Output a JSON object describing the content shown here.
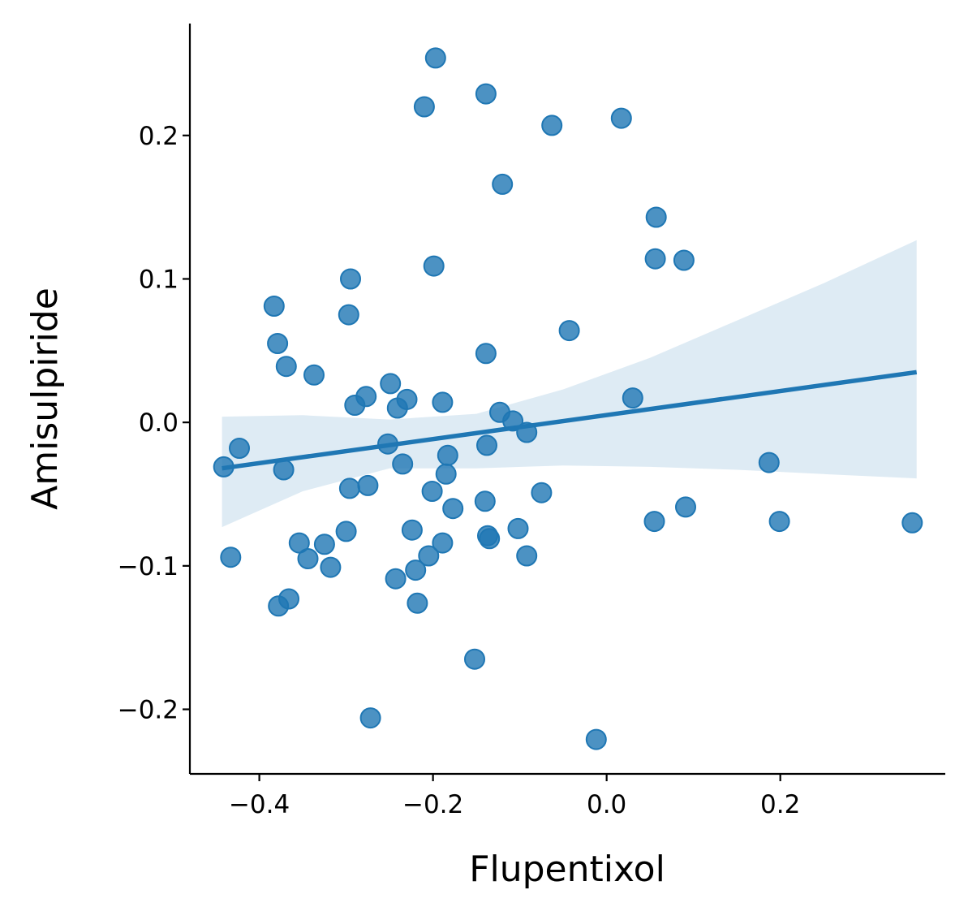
{
  "chart_data": {
    "type": "scatter",
    "xlabel": "Flupentixol",
    "ylabel": "Amisulpiride",
    "xlim": [
      -0.48,
      0.39
    ],
    "ylim": [
      -0.245,
      0.278
    ],
    "xticks": [
      -0.4,
      -0.2,
      0.0,
      0.2
    ],
    "xtick_labels": [
      "−0.4",
      "−0.2",
      "0.0",
      "0.2"
    ],
    "yticks": [
      -0.2,
      -0.1,
      0.0,
      0.1,
      0.2
    ],
    "ytick_labels": [
      "−0.2",
      "−0.1",
      "0.0",
      "0.1",
      "0.2"
    ],
    "grid": false,
    "point_color": "#1f77b4",
    "band_color": "#1f77b4",
    "points": [
      [
        -0.197,
        0.254
      ],
      [
        -0.139,
        0.229
      ],
      [
        -0.21,
        0.22
      ],
      [
        -0.063,
        0.207
      ],
      [
        0.017,
        0.212
      ],
      [
        -0.12,
        0.166
      ],
      [
        0.057,
        0.143
      ],
      [
        0.056,
        0.114
      ],
      [
        0.089,
        0.113
      ],
      [
        -0.199,
        0.109
      ],
      [
        -0.295,
        0.1
      ],
      [
        -0.383,
        0.081
      ],
      [
        -0.297,
        0.075
      ],
      [
        -0.043,
        0.064
      ],
      [
        -0.379,
        0.055
      ],
      [
        -0.139,
        0.048
      ],
      [
        -0.369,
        0.039
      ],
      [
        -0.337,
        0.033
      ],
      [
        -0.249,
        0.027
      ],
      [
        -0.277,
        0.018
      ],
      [
        -0.23,
        0.016
      ],
      [
        0.03,
        0.017
      ],
      [
        -0.29,
        0.012
      ],
      [
        -0.189,
        0.014
      ],
      [
        -0.241,
        0.01
      ],
      [
        -0.123,
        0.007
      ],
      [
        -0.108,
        0.001
      ],
      [
        -0.092,
        -0.007
      ],
      [
        -0.423,
        -0.018
      ],
      [
        -0.252,
        -0.015
      ],
      [
        -0.138,
        -0.016
      ],
      [
        -0.183,
        -0.023
      ],
      [
        -0.441,
        -0.031
      ],
      [
        -0.372,
        -0.033
      ],
      [
        -0.235,
        -0.029
      ],
      [
        -0.185,
        -0.036
      ],
      [
        0.187,
        -0.028
      ],
      [
        -0.275,
        -0.044
      ],
      [
        -0.296,
        -0.046
      ],
      [
        -0.201,
        -0.048
      ],
      [
        -0.075,
        -0.049
      ],
      [
        -0.14,
        -0.055
      ],
      [
        -0.177,
        -0.06
      ],
      [
        0.055,
        -0.069
      ],
      [
        0.091,
        -0.059
      ],
      [
        0.199,
        -0.069
      ],
      [
        0.352,
        -0.07
      ],
      [
        -0.3,
        -0.076
      ],
      [
        -0.224,
        -0.075
      ],
      [
        -0.102,
        -0.074
      ],
      [
        -0.137,
        -0.079
      ],
      [
        -0.135,
        -0.081
      ],
      [
        -0.354,
        -0.084
      ],
      [
        -0.325,
        -0.085
      ],
      [
        -0.189,
        -0.084
      ],
      [
        -0.433,
        -0.094
      ],
      [
        -0.344,
        -0.095
      ],
      [
        -0.205,
        -0.093
      ],
      [
        -0.092,
        -0.093
      ],
      [
        -0.318,
        -0.101
      ],
      [
        -0.22,
        -0.103
      ],
      [
        -0.243,
        -0.109
      ],
      [
        -0.366,
        -0.123
      ],
      [
        -0.378,
        -0.128
      ],
      [
        -0.218,
        -0.126
      ],
      [
        -0.152,
        -0.165
      ],
      [
        -0.272,
        -0.206
      ],
      [
        -0.012,
        -0.221
      ]
    ],
    "regression": {
      "x": [
        -0.443,
        0.357
      ],
      "y": [
        -0.032,
        0.035
      ],
      "band_x": [
        -0.443,
        -0.35,
        -0.25,
        -0.15,
        -0.05,
        0.05,
        0.15,
        0.25,
        0.357
      ],
      "band_upper": [
        0.004,
        0.005,
        0.002,
        0.006,
        0.023,
        0.045,
        0.071,
        0.097,
        0.127
      ],
      "band_lower": [
        -0.073,
        -0.048,
        -0.032,
        -0.032,
        -0.03,
        -0.031,
        -0.033,
        -0.036,
        -0.039
      ]
    }
  }
}
